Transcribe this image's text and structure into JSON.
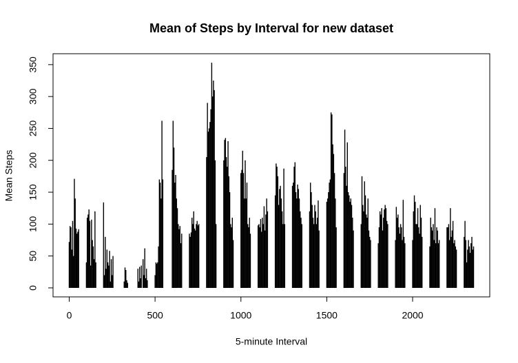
{
  "chart_data": {
    "type": "spike",
    "title": "Mean of Steps by Interval for new dataset",
    "x_label": "5-minute Interval",
    "y_label": "Mean Steps",
    "color": "#000000",
    "xlim": [
      -94.2,
      2449.2
    ],
    "ylim": [
      -14.1,
      367.1
    ],
    "xticks": [
      0,
      500,
      1000,
      1500,
      2000
    ],
    "yticks": [
      0,
      50,
      100,
      150,
      200,
      250,
      300,
      350
    ],
    "x": [
      0,
      5,
      10,
      15,
      20,
      25,
      30,
      35,
      40,
      45,
      50,
      55,
      100,
      105,
      110,
      115,
      120,
      125,
      130,
      135,
      140,
      145,
      150,
      155,
      200,
      205,
      210,
      215,
      220,
      225,
      230,
      235,
      240,
      245,
      250,
      255,
      300,
      305,
      310,
      315,
      320,
      325,
      330,
      335,
      340,
      345,
      350,
      355,
      400,
      405,
      410,
      415,
      420,
      425,
      430,
      435,
      440,
      445,
      450,
      455,
      500,
      505,
      510,
      515,
      520,
      525,
      530,
      535,
      540,
      545,
      550,
      555,
      600,
      605,
      610,
      615,
      620,
      625,
      630,
      635,
      640,
      645,
      650,
      655,
      700,
      705,
      710,
      715,
      720,
      725,
      730,
      735,
      740,
      745,
      750,
      755,
      800,
      805,
      810,
      815,
      820,
      825,
      830,
      835,
      840,
      845,
      850,
      855,
      900,
      905,
      910,
      915,
      920,
      925,
      930,
      935,
      940,
      945,
      950,
      955,
      1000,
      1005,
      1010,
      1015,
      1020,
      1025,
      1030,
      1035,
      1040,
      1045,
      1050,
      1055,
      1100,
      1105,
      1110,
      1115,
      1120,
      1125,
      1130,
      1135,
      1140,
      1145,
      1150,
      1155,
      1200,
      1205,
      1210,
      1215,
      1220,
      1225,
      1230,
      1235,
      1240,
      1245,
      1250,
      1255,
      1300,
      1305,
      1310,
      1315,
      1320,
      1325,
      1330,
      1335,
      1340,
      1345,
      1350,
      1355,
      1400,
      1405,
      1410,
      1415,
      1420,
      1425,
      1430,
      1435,
      1440,
      1445,
      1450,
      1455,
      1500,
      1505,
      1510,
      1515,
      1520,
      1525,
      1530,
      1535,
      1540,
      1545,
      1550,
      1555,
      1600,
      1605,
      1610,
      1615,
      1620,
      1625,
      1630,
      1635,
      1640,
      1645,
      1650,
      1655,
      1700,
      1705,
      1710,
      1715,
      1720,
      1725,
      1730,
      1735,
      1740,
      1745,
      1750,
      1755,
      1800,
      1805,
      1810,
      1815,
      1820,
      1825,
      1830,
      1835,
      1840,
      1845,
      1850,
      1855,
      1900,
      1905,
      1910,
      1915,
      1920,
      1925,
      1930,
      1935,
      1940,
      1945,
      1950,
      1955,
      2000,
      2005,
      2010,
      2015,
      2020,
      2025,
      2030,
      2035,
      2040,
      2045,
      2050,
      2055,
      2100,
      2105,
      2110,
      2115,
      2120,
      2125,
      2130,
      2135,
      2140,
      2145,
      2150,
      2155,
      2200,
      2205,
      2210,
      2215,
      2220,
      2225,
      2230,
      2235,
      2240,
      2245,
      2250,
      2255,
      2300,
      2305,
      2310,
      2315,
      2320,
      2325,
      2330,
      2335,
      2340,
      2345,
      2350,
      2355
    ],
    "values": [
      72,
      97,
      95,
      60,
      105,
      50,
      171,
      140,
      93,
      85,
      88,
      92,
      40,
      110,
      115,
      123,
      105,
      35,
      107,
      75,
      65,
      45,
      120,
      40,
      134,
      20,
      80,
      30,
      60,
      40,
      35,
      58,
      10,
      45,
      20,
      50,
      0,
      0,
      0,
      0,
      10,
      32,
      28,
      12,
      8,
      0,
      0,
      0,
      30,
      10,
      33,
      15,
      35,
      0,
      45,
      20,
      62,
      15,
      30,
      12,
      20,
      40,
      38,
      40,
      65,
      170,
      165,
      140,
      262,
      170,
      0,
      0,
      185,
      262,
      220,
      165,
      177,
      140,
      125,
      100,
      92,
      97,
      70,
      85,
      85,
      80,
      87,
      110,
      100,
      120,
      93,
      90,
      100,
      105,
      98,
      100,
      205,
      290,
      245,
      250,
      260,
      280,
      353,
      300,
      325,
      310,
      200,
      100,
      200,
      232,
      235,
      205,
      190,
      230,
      175,
      150,
      100,
      95,
      110,
      75,
      180,
      185,
      215,
      180,
      140,
      200,
      140,
      165,
      100,
      95,
      110,
      85,
      98,
      100,
      95,
      108,
      88,
      110,
      100,
      128,
      90,
      115,
      140,
      120,
      145,
      195,
      190,
      175,
      130,
      155,
      160,
      140,
      120,
      100,
      187,
      100,
      160,
      165,
      190,
      197,
      150,
      140,
      162,
      155,
      140,
      120,
      110,
      100,
      120,
      165,
      150,
      130,
      110,
      100,
      130,
      120,
      100,
      110,
      137,
      90,
      135,
      140,
      150,
      165,
      170,
      275,
      272,
      225,
      210,
      180,
      140,
      95,
      180,
      248,
      190,
      160,
      228,
      150,
      145,
      135,
      140,
      130,
      110,
      90,
      100,
      175,
      130,
      120,
      167,
      145,
      115,
      110,
      140,
      90,
      80,
      75,
      70,
      95,
      120,
      115,
      125,
      90,
      110,
      123,
      130,
      125,
      105,
      100,
      75,
      127,
      110,
      115,
      95,
      85,
      100,
      95,
      75,
      138,
      80,
      70,
      75,
      120,
      145,
      135,
      100,
      100,
      125,
      95,
      85,
      130,
      110,
      80,
      65,
      110,
      95,
      90,
      100,
      75,
      125,
      70,
      95,
      90,
      70,
      75,
      95,
      95,
      100,
      75,
      125,
      80,
      90,
      105,
      70,
      75,
      65,
      60,
      80,
      105,
      75,
      40,
      60,
      75,
      65,
      55,
      70,
      80,
      60,
      65
    ]
  }
}
